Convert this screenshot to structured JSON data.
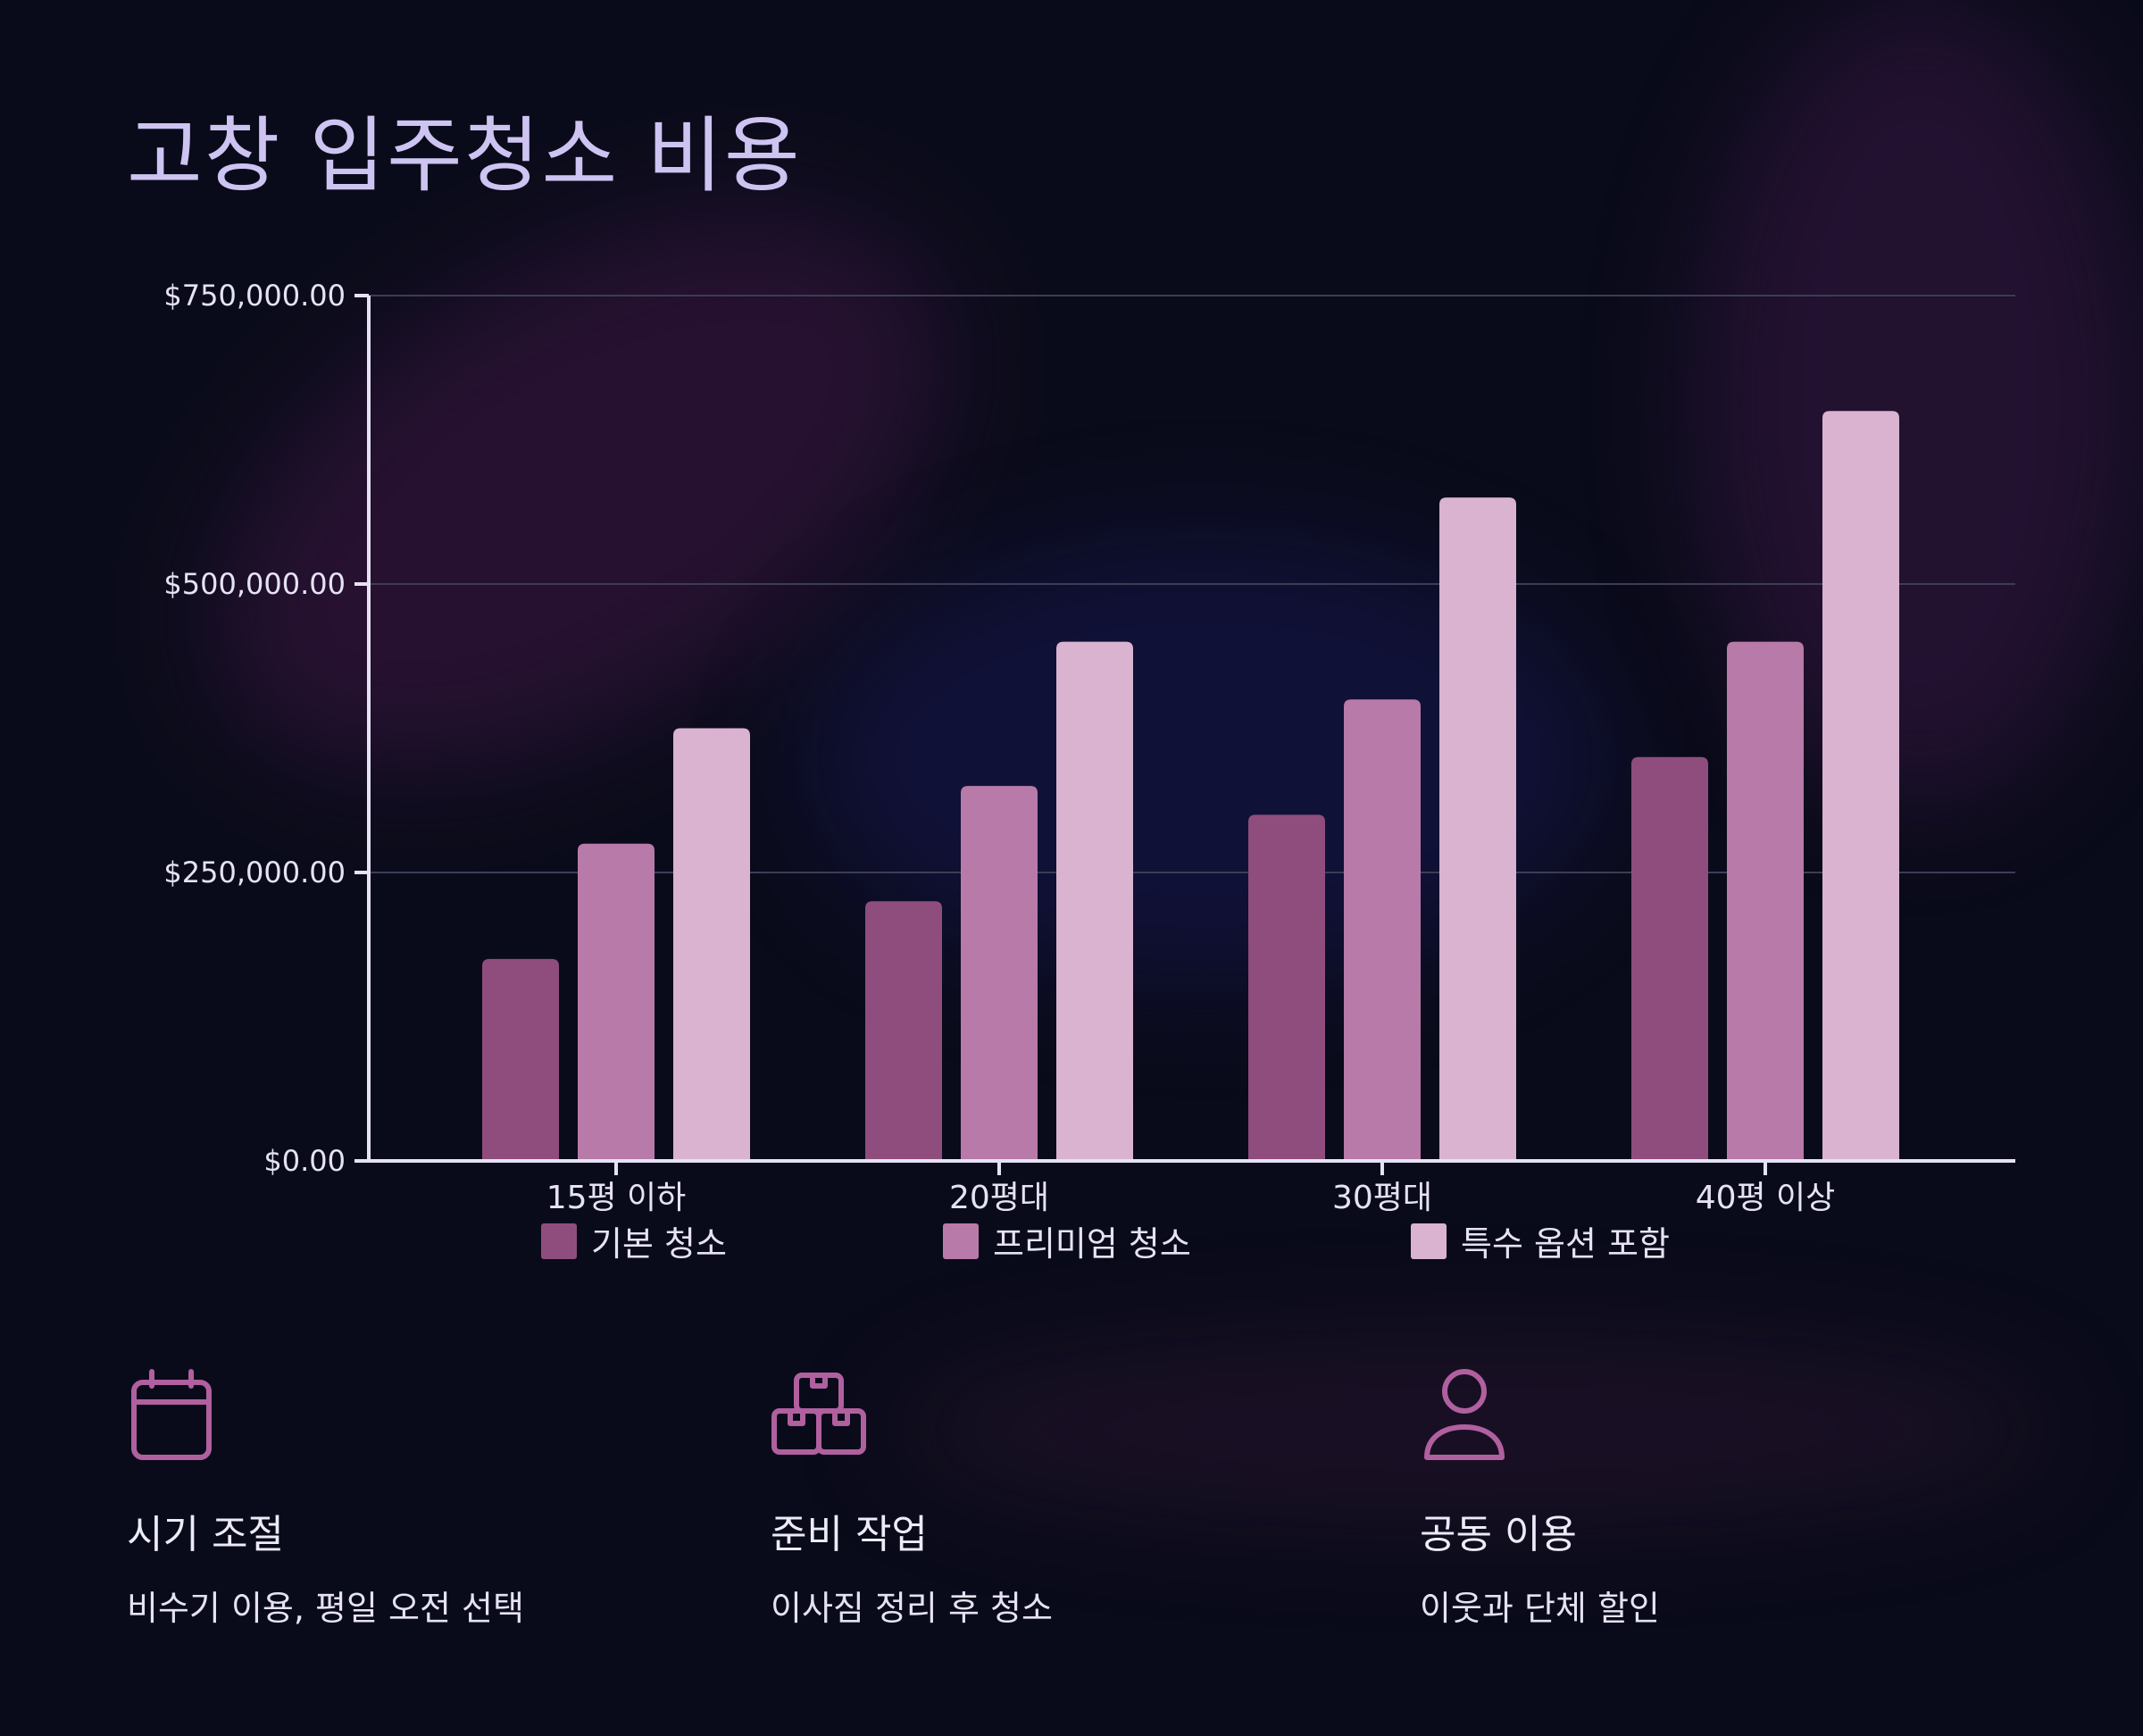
{
  "title": "고창 입주청소 비용",
  "chart_data": {
    "type": "bar",
    "categories": [
      "15평 이하",
      "20평대",
      "30평대",
      "40평 이상"
    ],
    "series": [
      {
        "name": "기본 청소",
        "color": "#8f4d7e",
        "values": [
          175000,
          225000,
          300000,
          350000
        ]
      },
      {
        "name": "프리미엄 청소",
        "color": "#b87aa8",
        "values": [
          275000,
          325000,
          400000,
          450000
        ]
      },
      {
        "name": "특수 옵션 포함",
        "color": "#d9b3cf",
        "values": [
          375000,
          450000,
          575000,
          650000
        ]
      }
    ],
    "yticks": [
      "$0.00",
      "$250,000.00",
      "$500,000.00",
      "$750,000.00"
    ],
    "ytick_values": [
      0,
      250000,
      500000,
      750000
    ],
    "ylim": [
      0,
      750000
    ],
    "grid": true,
    "legend": "bottom"
  },
  "tips": [
    {
      "icon": "calendar-icon",
      "heading": "시기 조절",
      "text": "비수기 이용, 평일 오전 선택"
    },
    {
      "icon": "boxes-icon",
      "heading": "준비 작업",
      "text": "이사짐 정리 후 청소"
    },
    {
      "icon": "person-icon",
      "heading": "공동 이용",
      "text": "이웃과 단체 할인"
    }
  ],
  "colors": {
    "background": "#0a0b1a",
    "title": "#cdc4f2",
    "icon": "#b0609f"
  }
}
